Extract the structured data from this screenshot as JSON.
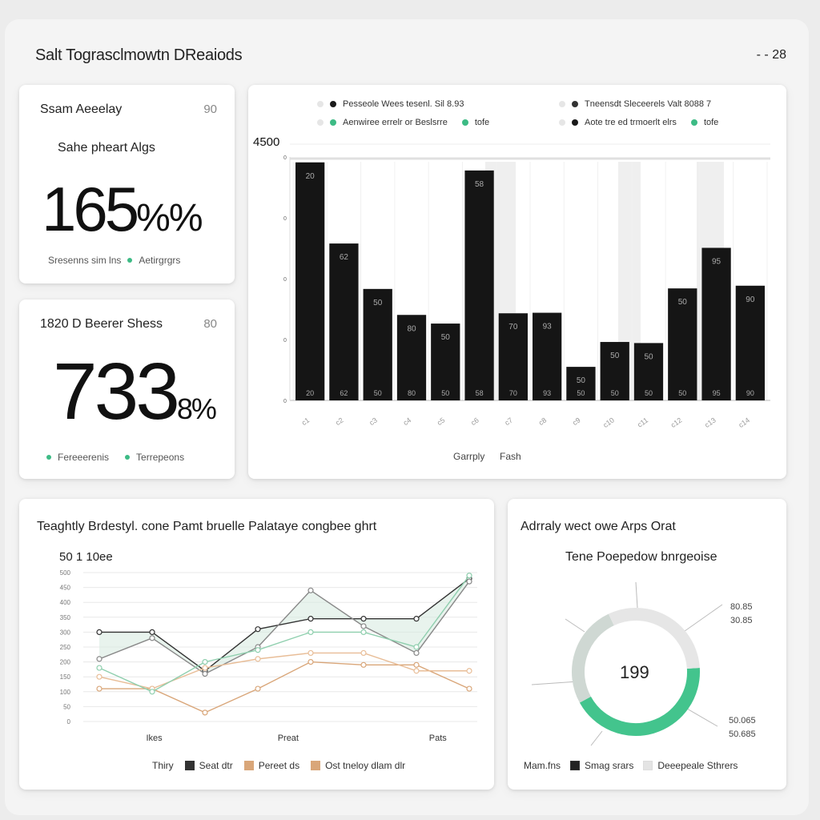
{
  "header": {
    "title": "Salt Tograsclmowtn DReaiods",
    "right": "- - 28"
  },
  "kpi1": {
    "title": "Ssam Aeeelay",
    "badge": "90",
    "subtitle": "Sahe pheart Algs",
    "value": "165",
    "value_suffix": "%%",
    "foot_left": "Sresenns sim lns",
    "foot_right": "Aetirgrgrs"
  },
  "kpi2": {
    "title": "1820 D Beerer Shess",
    "badge": "80",
    "value": "733",
    "value_suffix": "8%",
    "foot_left": "Fereeerenis",
    "foot_right": "Terrepeons"
  },
  "bar_card": {
    "legend": [
      {
        "label": "Pesseole Wees tesenl. Sil 8.93",
        "color": "#1a1a1a"
      },
      {
        "label": "Tneensdt Sleceerels Valt 8088 7",
        "color": "#1a1a1a"
      },
      {
        "label": "Aenwiree errelr or Beslsrre",
        "color": "#3dbb85"
      },
      {
        "label": "tofe",
        "color": "#3dbb85"
      },
      {
        "label": "Aote tre ed trmoerlt elrs",
        "color": "#1a1a1a"
      },
      {
        "label": "tofe",
        "color": "#3dbb85"
      }
    ],
    "axis_max_label": "4500",
    "x_title": "Garrply",
    "x_title_2": "Fash"
  },
  "line_card": {
    "title": "Teaghtly Brdestyl. cone Pamt bruelle Palataye congbee ghrt",
    "subtitle": "50 1 10ee",
    "x_labels": [
      "Ikes",
      "Preat",
      "Pats"
    ],
    "legend": [
      {
        "label": "Thiry",
        "color": "none"
      },
      {
        "label": "Seat dtr",
        "color": "#333333"
      },
      {
        "label": "Pereet ds",
        "color": "#d9a679"
      },
      {
        "label": "Ost tneloy dlam dlr",
        "color": "#d9a679"
      }
    ]
  },
  "donut_card": {
    "title": "Adrraly wect owe Arps Orat",
    "subtitle": "Tene Poepedow bnrgeoise",
    "center": "199",
    "label_top_1": "80.85",
    "label_top_2": "30.85",
    "label_bottom_1": "50.065",
    "label_bottom_2": "50.685",
    "legend": [
      {
        "label": "Mam.fns",
        "color": "none"
      },
      {
        "label": "Smag srars",
        "color": "#222222"
      },
      {
        "label": "Deeepeale Sthrers",
        "color": "#e4e4e4"
      }
    ]
  },
  "chart_data": [
    {
      "type": "bar",
      "title": "",
      "xlabel": "Garrply",
      "ylabel": "",
      "ylim": [
        0,
        4500
      ],
      "categories": [
        "c1",
        "c2",
        "c3",
        "c4",
        "c5",
        "c6",
        "c7",
        "c8",
        "c9",
        "c10",
        "c11",
        "c12",
        "c13",
        "c14"
      ],
      "values": [
        4400,
        2900,
        2060,
        1580,
        1420,
        4250,
        1610,
        1620,
        620,
        1080,
        1060,
        2070,
        2820,
        2120
      ],
      "bar_labels": [
        "20",
        "62",
        "50",
        "80",
        "50",
        "58",
        "70",
        "93",
        "50",
        "50",
        "50",
        "50",
        "95",
        "90"
      ],
      "grid": true
    },
    {
      "type": "line",
      "title": "",
      "ylim": [
        0,
        500
      ],
      "x": [
        0,
        1,
        2,
        3,
        4,
        5,
        6,
        7
      ],
      "series": [
        {
          "name": "Seat dtr",
          "color": "#333333",
          "values": [
            300,
            300,
            170,
            310,
            345,
            345,
            345,
            480
          ]
        },
        {
          "name": "",
          "color": "#888888",
          "values": [
            210,
            280,
            160,
            250,
            440,
            320,
            230,
            470
          ]
        },
        {
          "name": "Pereet ds",
          "color": "#d9a679",
          "values": [
            110,
            110,
            30,
            110,
            200,
            190,
            190,
            110
          ]
        },
        {
          "name": "Ost tneloy dlam dlr",
          "color": "#e8bd97",
          "values": [
            150,
            110,
            180,
            210,
            230,
            230,
            170,
            170
          ]
        },
        {
          "name": "",
          "color": "#8fcfae",
          "values": [
            180,
            100,
            200,
            240,
            300,
            300,
            250,
            490
          ]
        }
      ]
    },
    {
      "type": "pie",
      "title": "",
      "slices": [
        {
          "label": "Smag srars",
          "value": 43,
          "color": "#43c48d"
        },
        {
          "label": "Deeepeale Sthrers",
          "value": 31,
          "color": "#e6e6e6"
        },
        {
          "label": "",
          "value": 26,
          "color": "#cfd8d3"
        }
      ]
    }
  ]
}
